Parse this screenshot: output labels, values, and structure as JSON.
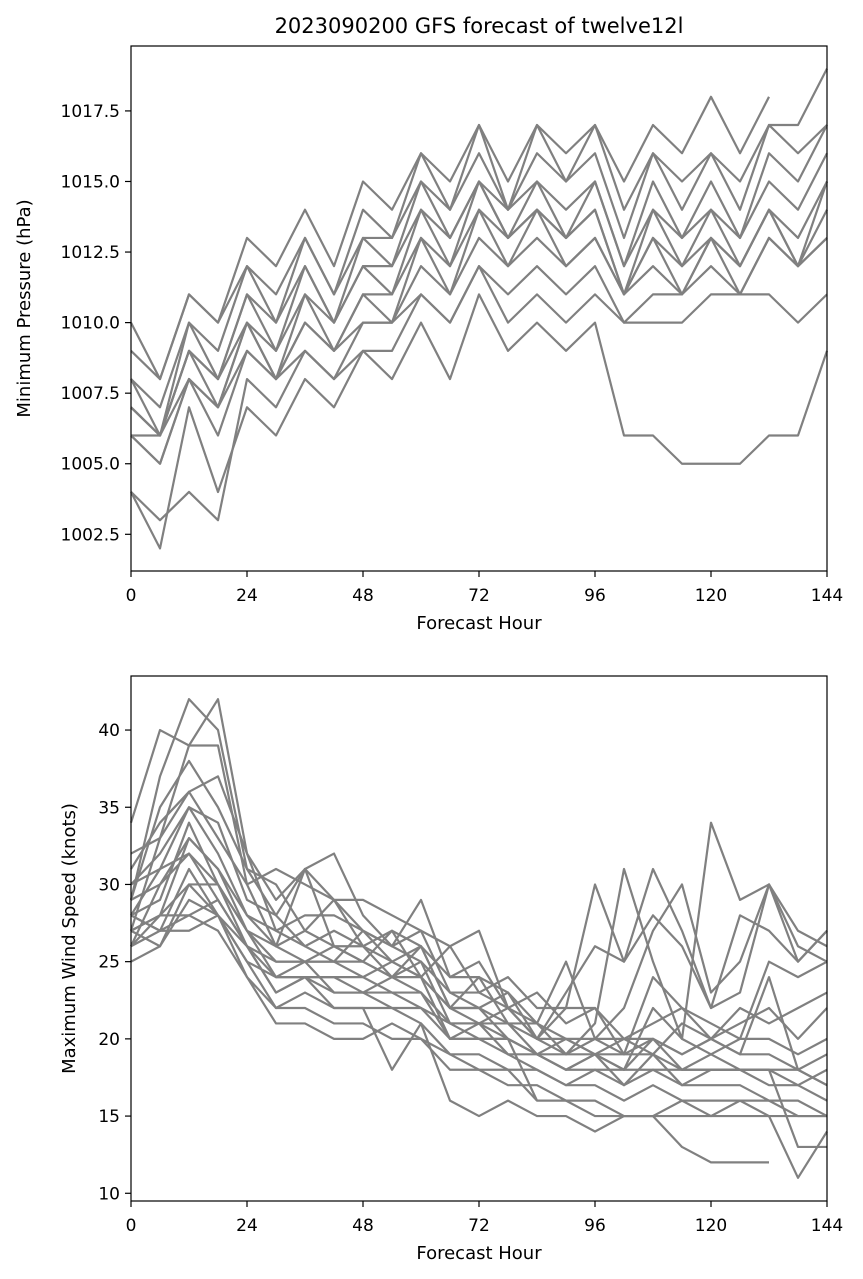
{
  "chart_data": [
    {
      "type": "line",
      "title": "2023090200 GFS forecast of twelve12l",
      "xlabel": "Forecast Hour",
      "ylabel": "Minimum Pressure (hPa)",
      "xlim": [
        0,
        144
      ],
      "ylim": [
        1001.2,
        1019.8
      ],
      "xticks": [
        0,
        24,
        48,
        72,
        96,
        120,
        144
      ],
      "yticks": [
        1002.5,
        1005.0,
        1007.5,
        1010.0,
        1012.5,
        1015.0,
        1017.5
      ],
      "grid": false,
      "line_color": "#808080",
      "x": [
        0,
        6,
        12,
        18,
        24,
        30,
        36,
        42,
        48,
        54,
        60,
        66,
        72,
        78,
        84,
        90,
        96,
        102,
        108,
        114,
        120,
        126,
        132,
        138,
        144
      ],
      "series": [
        {
          "values": [
            1010,
            1008,
            1011,
            1010,
            1013,
            1012,
            1014,
            1012,
            1015,
            1014,
            1016,
            1015,
            1017,
            1015,
            1017,
            1016,
            1017,
            1015,
            1017,
            1016,
            1018,
            1016,
            1018,
            null,
            null
          ]
        },
        {
          "values": [
            1009,
            1008,
            1011,
            1010,
            1012,
            1011,
            1013,
            1011,
            1014,
            1013,
            1016,
            1014,
            1017,
            1014,
            1017,
            1015,
            1017,
            1014,
            1016,
            1015,
            1016,
            1015,
            1017,
            1017,
            1019
          ]
        },
        {
          "values": [
            1008,
            1007,
            1010,
            1009,
            1012,
            1010,
            1013,
            1011,
            1013,
            1013,
            1015,
            1014,
            1016,
            1014,
            1016,
            1015,
            1016,
            1013,
            1016,
            1014,
            1016,
            1014,
            1017,
            1016,
            1017
          ]
        },
        {
          "values": [
            1008,
            1006,
            1010,
            1008,
            1011,
            1010,
            1012,
            1010,
            1013,
            1012,
            1015,
            1013,
            1015,
            1014,
            1015,
            1014,
            1015,
            1012,
            1015,
            1013,
            1015,
            1013,
            1016,
            1015,
            1017
          ]
        },
        {
          "values": [
            1007,
            1006,
            1009,
            1008,
            1011,
            1009,
            1012,
            1010,
            1012,
            1012,
            1014,
            1013,
            1015,
            1013,
            1015,
            1013,
            1015,
            1012,
            1014,
            1013,
            1014,
            1013,
            1015,
            1014,
            1016
          ]
        },
        {
          "values": [
            1007,
            1006,
            1009,
            1008,
            1010,
            1009,
            1011,
            1010,
            1012,
            1011,
            1014,
            1012,
            1015,
            1013,
            1014,
            1013,
            1014,
            1011,
            1014,
            1012,
            1014,
            1012,
            1014,
            1013,
            1015
          ]
        },
        {
          "values": [
            1006,
            1006,
            1009,
            1007,
            1010,
            1008,
            1011,
            1009,
            1011,
            1011,
            1013,
            1012,
            1014,
            1013,
            1014,
            1013,
            1014,
            1011,
            1013,
            1012,
            1013,
            1012,
            1014,
            1012,
            1015
          ]
        },
        {
          "values": [
            1006,
            1005,
            1008,
            1007,
            1010,
            1008,
            1010,
            1009,
            1011,
            1010,
            1013,
            1011,
            1014,
            1012,
            1014,
            1012,
            1013,
            1011,
            1013,
            1011,
            1013,
            1012,
            1014,
            1012,
            1014
          ]
        },
        {
          "values": [
            1007,
            1006,
            1008,
            1007,
            1009,
            1008,
            1010,
            1009,
            1010,
            1010,
            1012,
            1011,
            1013,
            1012,
            1013,
            1012,
            1013,
            1011,
            1012,
            1011,
            1013,
            1011,
            1013,
            1012,
            1013
          ]
        },
        {
          "values": [
            1006,
            1005,
            1008,
            1006,
            1009,
            1008,
            1009,
            1008,
            1010,
            1010,
            1011,
            1010,
            1012,
            1011,
            1012,
            1011,
            1012,
            1010,
            1011,
            1011,
            1012,
            1011,
            1013,
            1012,
            1013
          ]
        },
        {
          "values": [
            1004,
            1003,
            1004,
            1003,
            1008,
            1007,
            1009,
            1008,
            1009,
            1009,
            1011,
            1010,
            1012,
            1010,
            1011,
            1010,
            1011,
            1010,
            1010,
            1010,
            1011,
            1011,
            1011,
            1010,
            1011
          ]
        },
        {
          "values": [
            1004,
            1002,
            1007,
            1004,
            1007,
            1006,
            1008,
            1007,
            1009,
            1008,
            1010,
            1008,
            1011,
            1009,
            1010,
            1009,
            1010,
            1006,
            1006,
            1005,
            1005,
            1005,
            1006,
            1006,
            1009
          ]
        }
      ]
    },
    {
      "type": "line",
      "title": "",
      "xlabel": "Forecast Hour",
      "ylabel": "Maximum Wind Speed (knots)",
      "xlim": [
        0,
        144
      ],
      "ylim": [
        9.5,
        43.5
      ],
      "xticks": [
        0,
        24,
        48,
        72,
        96,
        120,
        144
      ],
      "yticks": [
        10,
        15,
        20,
        25,
        30,
        35,
        40
      ],
      "grid": false,
      "line_color": "#808080",
      "x": [
        0,
        6,
        12,
        18,
        24,
        30,
        36,
        42,
        48,
        54,
        60,
        66,
        72,
        78,
        84,
        90,
        96,
        102,
        108,
        114,
        120,
        126,
        132,
        138,
        144
      ],
      "series": [
        {
          "values": [
            34,
            40,
            39,
            42,
            32,
            29,
            31,
            29,
            27,
            26,
            27,
            23,
            22,
            21,
            20,
            22,
            30,
            25,
            31,
            27,
            22,
            23,
            30,
            26,
            25
          ]
        },
        {
          "values": [
            29,
            37,
            42,
            40,
            31,
            28,
            31,
            32,
            28,
            26,
            29,
            24,
            25,
            22,
            20,
            19,
            21,
            31,
            25,
            20,
            34,
            29,
            30,
            25,
            27
          ]
        },
        {
          "values": [
            32,
            33,
            39,
            39,
            30,
            31,
            30,
            29,
            29,
            28,
            27,
            26,
            27,
            22,
            20,
            23,
            26,
            25,
            28,
            26,
            22,
            28,
            27,
            25,
            27
          ]
        },
        {
          "values": [
            29,
            35,
            38,
            35,
            31,
            30,
            27,
            29,
            26,
            27,
            26,
            24,
            24,
            23,
            21,
            25,
            20,
            22,
            27,
            30,
            23,
            25,
            30,
            27,
            26
          ]
        },
        {
          "values": [
            31,
            34,
            36,
            37,
            32,
            27,
            28,
            28,
            27,
            26,
            25,
            23,
            23,
            24,
            22,
            22,
            22,
            19,
            24,
            22,
            21,
            20,
            25,
            24,
            25
          ]
        },
        {
          "values": [
            27,
            33,
            36,
            33,
            30,
            26,
            31,
            26,
            25,
            27,
            24,
            26,
            23,
            22,
            23,
            21,
            22,
            20,
            21,
            22,
            20,
            22,
            21,
            22,
            23
          ]
        },
        {
          "values": [
            30,
            32,
            35,
            34,
            29,
            28,
            26,
            27,
            26,
            24,
            26,
            22,
            24,
            21,
            21,
            20,
            20,
            20,
            19,
            21,
            20,
            21,
            22,
            20,
            22
          ]
        },
        {
          "values": [
            28,
            31,
            35,
            32,
            28,
            27,
            26,
            25,
            27,
            25,
            26,
            22,
            22,
            23,
            20,
            20,
            19,
            18,
            22,
            20,
            19,
            20,
            20,
            19,
            20
          ]
        },
        {
          "values": [
            26,
            30,
            33,
            31,
            28,
            26,
            25,
            26,
            25,
            24,
            25,
            21,
            21,
            22,
            21,
            19,
            20,
            19,
            20,
            19,
            20,
            19,
            19,
            18,
            19
          ]
        },
        {
          "values": [
            28,
            29,
            34,
            30,
            27,
            25,
            25,
            25,
            24,
            25,
            24,
            22,
            21,
            21,
            19,
            18,
            19,
            19,
            19,
            18,
            19,
            18,
            18,
            17,
            18
          ]
        },
        {
          "values": [
            27,
            28,
            33,
            31,
            27,
            24,
            24,
            24,
            24,
            23,
            23,
            21,
            20,
            20,
            19,
            18,
            18,
            18,
            18,
            18,
            18,
            18,
            18,
            18,
            17
          ]
        },
        {
          "values": [
            29,
            30,
            32,
            29,
            26,
            24,
            25,
            23,
            23,
            24,
            23,
            20,
            20,
            20,
            19,
            18,
            19,
            17,
            19,
            17,
            18,
            18,
            17,
            17,
            16
          ]
        },
        {
          "values": [
            26,
            28,
            30,
            30,
            26,
            23,
            24,
            23,
            23,
            22,
            22,
            20,
            20,
            19,
            18,
            17,
            18,
            17,
            18,
            17,
            17,
            17,
            16,
            16,
            15
          ]
        },
        {
          "values": [
            28,
            27,
            31,
            28,
            25,
            22,
            23,
            22,
            22,
            22,
            21,
            19,
            19,
            18,
            18,
            17,
            17,
            16,
            17,
            16,
            16,
            16,
            16,
            15,
            15
          ]
        },
        {
          "values": [
            25,
            26,
            29,
            28,
            24,
            22,
            22,
            21,
            21,
            20,
            20,
            19,
            18,
            17,
            17,
            16,
            16,
            15,
            15,
            15,
            15,
            15,
            15,
            15,
            15
          ]
        },
        {
          "values": [
            26,
            27,
            28,
            27,
            24,
            21,
            21,
            20,
            20,
            21,
            20,
            18,
            18,
            18,
            16,
            16,
            15,
            15,
            15,
            13,
            12,
            12,
            12,
            null,
            null
          ]
        },
        {
          "values": [
            27,
            26,
            30,
            28,
            26,
            23,
            24,
            22,
            22,
            18,
            21,
            16,
            15,
            16,
            15,
            15,
            14,
            15,
            15,
            16,
            15,
            16,
            15,
            11,
            14
          ]
        },
        {
          "values": [
            28,
            27,
            27,
            28,
            25,
            24,
            24,
            24,
            23,
            23,
            22,
            21,
            21,
            20,
            16,
            null,
            null,
            null,
            null,
            null,
            null,
            null,
            null,
            null,
            null
          ]
        },
        {
          "values": [
            27,
            28,
            28,
            29,
            26,
            25,
            25,
            25,
            25,
            24,
            24,
            20,
            21,
            19,
            19,
            20,
            19,
            18,
            20,
            18,
            18,
            18,
            18,
            13,
            13
          ]
        },
        {
          "values": [
            30,
            31,
            32,
            30,
            27,
            26,
            27,
            26,
            26,
            25,
            24,
            22,
            22,
            20,
            19,
            19,
            19,
            20,
            20,
            19,
            20,
            19,
            24,
            18,
            17
          ]
        }
      ]
    }
  ]
}
